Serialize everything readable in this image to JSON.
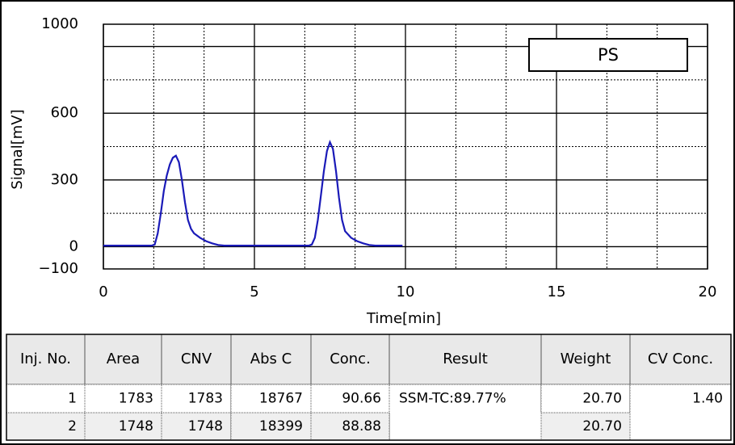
{
  "chart_data": {
    "type": "line",
    "xlabel": "Time[min]",
    "ylabel": "Signal[mV]",
    "x": [
      0,
      1.6,
      1.7,
      1.8,
      1.9,
      2.0,
      2.1,
      2.2,
      2.3,
      2.4,
      2.5,
      2.6,
      2.7,
      2.8,
      2.9,
      3.0,
      3.2,
      3.4,
      3.6,
      3.8,
      4.0,
      6.8,
      6.9,
      7.0,
      7.1,
      7.2,
      7.3,
      7.4,
      7.5,
      7.6,
      7.7,
      7.8,
      7.9,
      8.0,
      8.2,
      8.4,
      8.6,
      8.8,
      9.0,
      9.9
    ],
    "series": [
      {
        "name": "PS",
        "color": "#1a1ab8",
        "values": [
          5,
          5,
          10,
          60,
          150,
          250,
          320,
          370,
          400,
          409,
          380,
          300,
          200,
          120,
          80,
          60,
          40,
          25,
          15,
          8,
          5,
          5,
          10,
          40,
          120,
          230,
          340,
          430,
          470,
          440,
          340,
          220,
          120,
          70,
          40,
          25,
          15,
          8,
          5,
          5
        ]
      }
    ],
    "xlim": [
      0,
      20
    ],
    "xticks": [
      0,
      5,
      10,
      15,
      20
    ],
    "ylim": [
      -100,
      1000
    ],
    "yticks": [
      {
        "value": -100,
        "label": "−100"
      },
      0,
      300,
      600,
      1000
    ],
    "ygrid": [
      0,
      300,
      600,
      900
    ],
    "grid": true,
    "legend": "upper right"
  },
  "table": {
    "header": [
      "Inj. No.",
      "Area",
      "CNV",
      "Abs C",
      "Conc.",
      "Result",
      "Weight",
      "CV Conc."
    ],
    "rows": [
      [
        "1",
        "1783",
        "1783",
        "18767",
        "90.66",
        "SSM-TC:89.77%",
        "20.70",
        "1.40"
      ],
      [
        "2",
        "1748",
        "1748",
        "18399",
        "88.88",
        null,
        "20.70",
        null
      ]
    ]
  }
}
